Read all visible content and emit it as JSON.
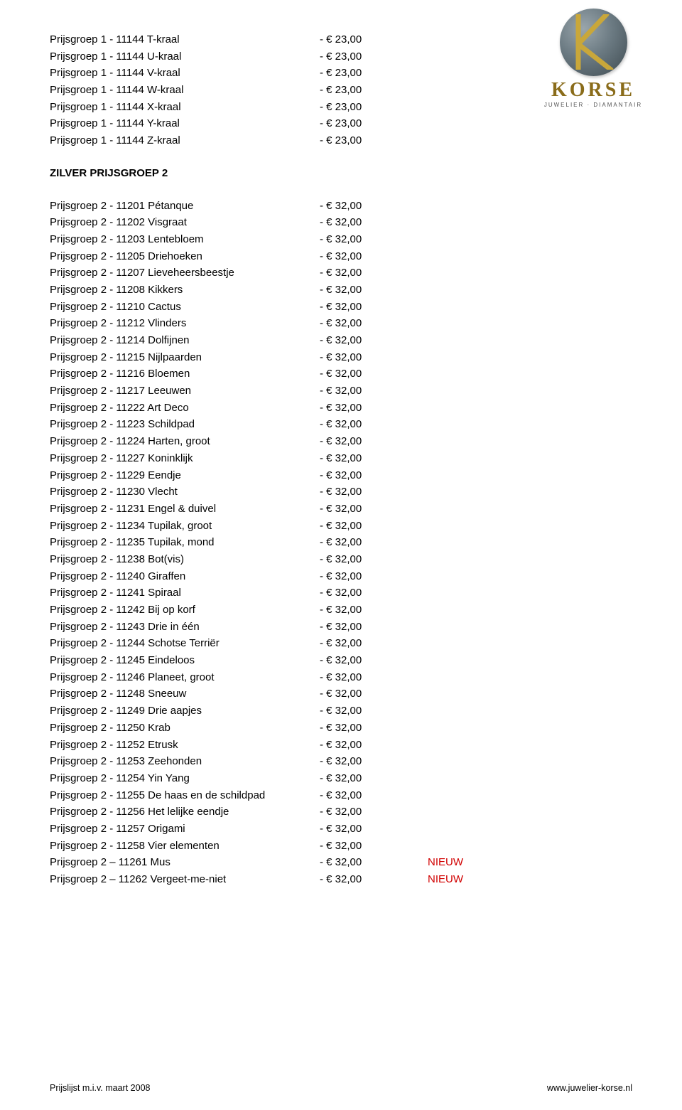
{
  "brand": {
    "name": "KORSE",
    "subtitle": "Juwelier · Diamantair"
  },
  "colors": {
    "text": "#000000",
    "background": "#ffffff",
    "brand_gold": "#8a6c1a",
    "nieuw_red": "#d10000",
    "logo_gradient": [
      "#9aa6ac",
      "#6b7a82",
      "#3e4a50"
    ]
  },
  "section1": {
    "rows": [
      {
        "desc": "Prijsgroep 1 - 11144 T-kraal",
        "price": "- € 23,00"
      },
      {
        "desc": "Prijsgroep 1 - 11144 U-kraal",
        "price": "- € 23,00"
      },
      {
        "desc": "Prijsgroep 1 - 11144 V-kraal",
        "price": "- € 23,00"
      },
      {
        "desc": "Prijsgroep 1 - 11144 W-kraal",
        "price": "- € 23,00"
      },
      {
        "desc": "Prijsgroep 1 - 11144 X-kraal",
        "price": "- € 23,00"
      },
      {
        "desc": "Prijsgroep 1 - 11144 Y-kraal",
        "price": "- € 23,00"
      },
      {
        "desc": "Prijsgroep 1 - 11144 Z-kraal",
        "price": "- € 23,00"
      }
    ]
  },
  "section2": {
    "title": "ZILVER PRIJSGROEP 2",
    "rows": [
      {
        "desc": "Prijsgroep 2 - 11201 Pétanque",
        "price": "- € 32,00"
      },
      {
        "desc": "Prijsgroep 2 - 11202 Visgraat",
        "price": "- € 32,00"
      },
      {
        "desc": "Prijsgroep 2 - 11203 Lentebloem",
        "price": "- € 32,00"
      },
      {
        "desc": "Prijsgroep 2 - 11205 Driehoeken",
        "price": "- € 32,00"
      },
      {
        "desc": "Prijsgroep 2 - 11207 Lieveheersbeestje",
        "price": "- € 32,00"
      },
      {
        "desc": "Prijsgroep 2 - 11208 Kikkers",
        "price": "- € 32,00"
      },
      {
        "desc": "Prijsgroep 2 - 11210 Cactus",
        "price": "- € 32,00"
      },
      {
        "desc": "Prijsgroep 2 - 11212 Vlinders",
        "price": "- € 32,00"
      },
      {
        "desc": "Prijsgroep 2 - 11214 Dolfijnen",
        "price": "- € 32,00"
      },
      {
        "desc": "Prijsgroep 2 - 11215 Nijlpaarden",
        "price": "- € 32,00"
      },
      {
        "desc": "Prijsgroep 2 - 11216 Bloemen",
        "price": "- € 32,00"
      },
      {
        "desc": "Prijsgroep 2 - 11217 Leeuwen",
        "price": "- € 32,00"
      },
      {
        "desc": "Prijsgroep 2 - 11222 Art Deco",
        "price": "- € 32,00"
      },
      {
        "desc": "Prijsgroep 2 - 11223 Schildpad",
        "price": "- € 32,00"
      },
      {
        "desc": "Prijsgroep 2 - 11224 Harten, groot",
        "price": "- € 32,00"
      },
      {
        "desc": "Prijsgroep 2 - 11227 Koninklijk",
        "price": "- € 32,00"
      },
      {
        "desc": "Prijsgroep 2 - 11229 Eendje",
        "price": "- € 32,00"
      },
      {
        "desc": "Prijsgroep 2 - 11230 Vlecht",
        "price": "- € 32,00"
      },
      {
        "desc": "Prijsgroep 2 - 11231 Engel & duivel",
        "price": "- € 32,00"
      },
      {
        "desc": "Prijsgroep 2 - 11234 Tupilak, groot",
        "price": "- € 32,00"
      },
      {
        "desc": "Prijsgroep 2 - 11235 Tupilak, mond",
        "price": "- € 32,00"
      },
      {
        "desc": "Prijsgroep 2 - 11238 Bot(vis)",
        "price": "- € 32,00"
      },
      {
        "desc": "Prijsgroep 2 - 11240 Giraffen",
        "price": "- € 32,00"
      },
      {
        "desc": "Prijsgroep 2 - 11241 Spiraal",
        "price": "- € 32,00"
      },
      {
        "desc": "Prijsgroep 2 - 11242 Bij op korf",
        "price": "- € 32,00"
      },
      {
        "desc": "Prijsgroep 2 - 11243 Drie in één",
        "price": "- € 32,00"
      },
      {
        "desc": "Prijsgroep 2 - 11244 Schotse Terriër",
        "price": "- € 32,00"
      },
      {
        "desc": "Prijsgroep 2 - 11245 Eindeloos",
        "price": "- € 32,00"
      },
      {
        "desc": "Prijsgroep 2 - 11246 Planeet, groot",
        "price": "- € 32,00"
      },
      {
        "desc": "Prijsgroep 2 - 11248 Sneeuw",
        "price": "- € 32,00"
      },
      {
        "desc": "Prijsgroep 2 - 11249 Drie aapjes",
        "price": "- € 32,00"
      },
      {
        "desc": "Prijsgroep 2 - 11250 Krab",
        "price": "- € 32,00"
      },
      {
        "desc": "Prijsgroep 2 - 11252 Etrusk",
        "price": "- € 32,00"
      },
      {
        "desc": "Prijsgroep 2 - 11253 Zeehonden",
        "price": "- € 32,00"
      },
      {
        "desc": "Prijsgroep 2 - 11254 Yin Yang",
        "price": "- € 32,00"
      },
      {
        "desc": "Prijsgroep 2 - 11255 De haas en de schildpad",
        "price": "- € 32,00"
      },
      {
        "desc": "Prijsgroep 2 - 11256 Het lelijke eendje",
        "price": "- € 32,00"
      },
      {
        "desc": "Prijsgroep 2 - 11257 Origami",
        "price": "- € 32,00"
      },
      {
        "desc": "Prijsgroep 2 - 11258 Vier elementen",
        "price": "- € 32,00"
      },
      {
        "desc": "Prijsgroep 2 – 11261 Mus",
        "price": "- € 32,00",
        "tag": "NIEUW"
      },
      {
        "desc": "Prijsgroep 2 – 11262 Vergeet-me-niet",
        "price": "- € 32,00",
        "tag": "NIEUW"
      }
    ]
  },
  "footer": {
    "left": "Prijslijst m.i.v. maart 2008",
    "right": "www.juwelier-korse.nl"
  }
}
